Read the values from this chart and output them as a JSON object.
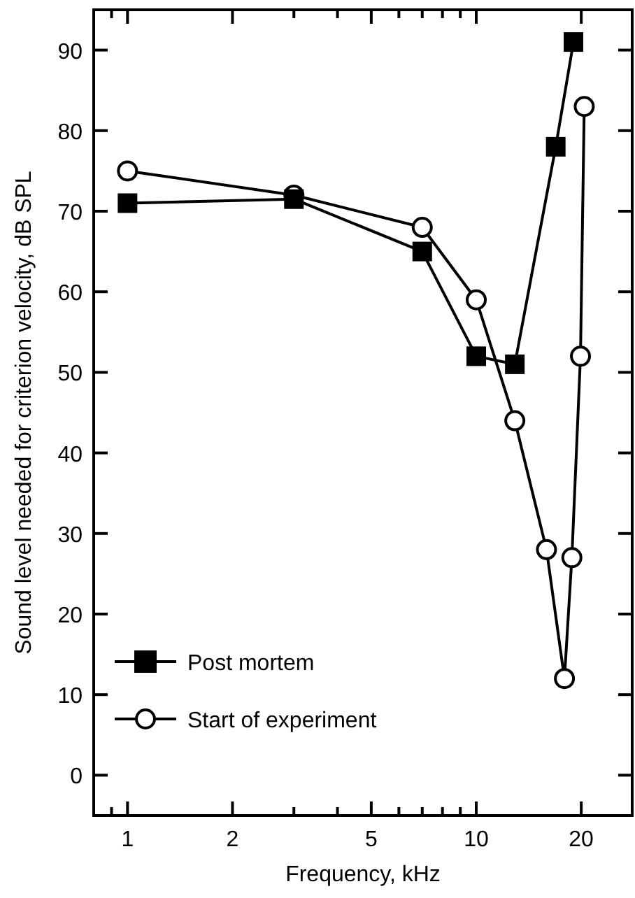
{
  "chart_data": {
    "type": "line",
    "xlabel": "Frequency, kHz",
    "ylabel": "Sound level needed for criterion velocity, dB SPL",
    "log": "x",
    "xlim": [
      0.8,
      28
    ],
    "ylim": [
      -5,
      95
    ],
    "xticks": [
      {
        "value": 0.9,
        "label": null
      },
      1,
      2,
      {
        "value": 3,
        "label": null
      },
      {
        "value": 4,
        "label": null
      },
      5,
      {
        "value": 6,
        "label": null
      },
      {
        "value": 7,
        "label": null
      },
      {
        "value": 8,
        "label": null
      },
      {
        "value": 9,
        "label": null
      },
      10,
      20
    ],
    "yticks": [
      0,
      10,
      20,
      30,
      40,
      50,
      60,
      70,
      80,
      90
    ],
    "legend": "bottom left",
    "grid": false,
    "line_style": "solid",
    "series": [
      {
        "name": "Post mortem",
        "color": "#000000",
        "marker": "square",
        "x": [
          1,
          3,
          7,
          10,
          12.9,
          16.9,
          19.0
        ],
        "values": [
          71,
          71.5,
          65,
          52,
          51,
          78,
          91
        ]
      },
      {
        "name": "Start of experiment",
        "color": "#000000",
        "marker": "circle",
        "x": [
          1,
          3,
          7,
          10,
          12.9,
          15.9,
          17.9,
          18.8,
          19.9,
          20.4
        ],
        "values": [
          75,
          72,
          68,
          59,
          44,
          28,
          12,
          27,
          52,
          83
        ]
      }
    ]
  }
}
